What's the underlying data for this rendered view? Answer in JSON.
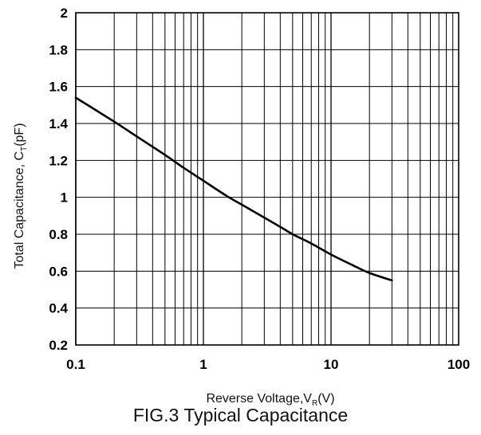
{
  "chart_data": {
    "type": "line",
    "title": "",
    "caption": "FIG.3 Typical Capacitance",
    "xlabel": {
      "main": "Reverse Voltage,V",
      "sub": "R",
      "suffix": "(V)"
    },
    "ylabel": {
      "main": "Total Capacitance, C",
      "sub": "T",
      "suffix": "(pF)"
    },
    "x_scale": "log",
    "xlim": [
      0.1,
      100
    ],
    "ylim": [
      0.2,
      2
    ],
    "x_ticks": [
      0.1,
      1,
      10,
      100
    ],
    "x_tick_labels": [
      "0.1",
      "1",
      "10",
      "100"
    ],
    "y_ticks": [
      0.2,
      0.4,
      0.6,
      0.8,
      1,
      1.2,
      1.4,
      1.6,
      1.8,
      2
    ],
    "y_tick_labels": [
      "0.2",
      "0.4",
      "0.6",
      "0.8",
      "1",
      "1.2",
      "1.4",
      "1.6",
      "1.8",
      "2"
    ],
    "grid": true,
    "legend": "none",
    "series": [
      {
        "x": [
          0.1,
          0.2,
          0.3,
          0.5,
          0.7,
          1,
          1.5,
          2,
          3,
          4,
          5,
          7,
          10,
          15,
          20,
          30
        ],
        "y": [
          1.54,
          1.41,
          1.33,
          1.23,
          1.16,
          1.09,
          1.01,
          0.96,
          0.89,
          0.84,
          0.8,
          0.75,
          0.69,
          0.63,
          0.59,
          0.55
        ]
      }
    ]
  }
}
